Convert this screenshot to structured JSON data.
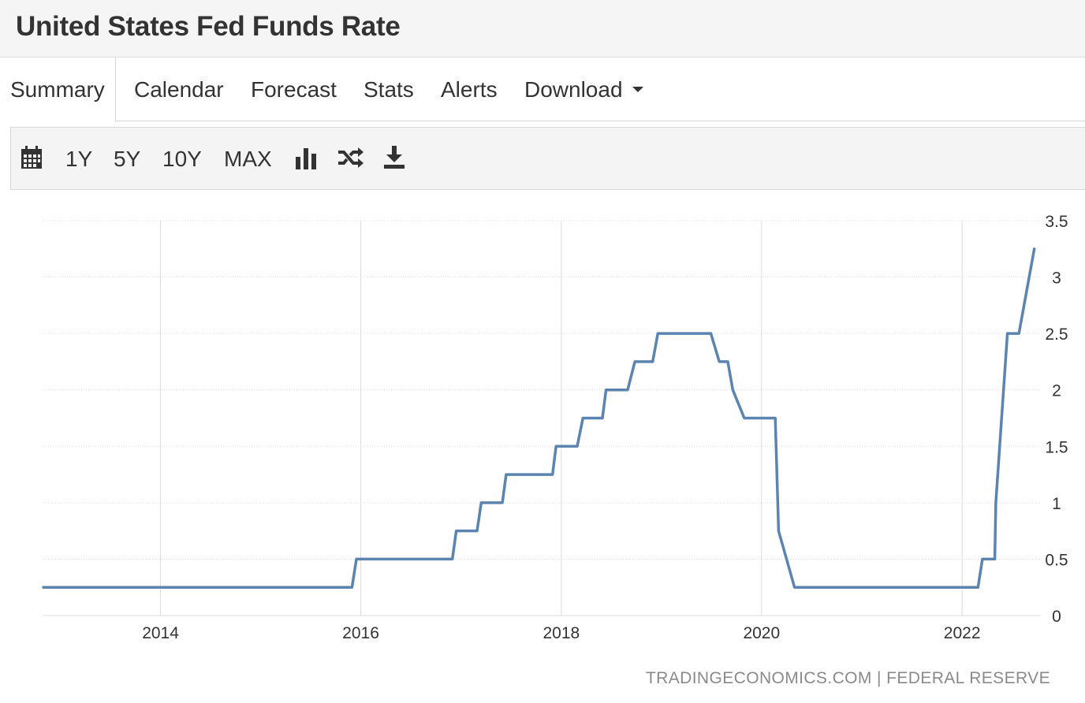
{
  "header": {
    "title": "United States Fed Funds Rate"
  },
  "tabs": [
    {
      "label": "Summary",
      "active": true
    },
    {
      "label": "Calendar"
    },
    {
      "label": "Forecast"
    },
    {
      "label": "Stats"
    },
    {
      "label": "Alerts"
    },
    {
      "label": "Download"
    }
  ],
  "toolbar": {
    "icons": [
      "calendar-icon",
      "bar-chart-icon",
      "shuffle-icon",
      "download-icon"
    ],
    "ranges": [
      "1Y",
      "5Y",
      "10Y",
      "MAX"
    ]
  },
  "colors": {
    "line": "#5b84b1",
    "grid": "#dcdcdc",
    "text": "#333333",
    "muted": "#8a8a8a"
  },
  "footer": {
    "source": "TRADINGECONOMICS.COM | FEDERAL RESERVE"
  },
  "chart_data": {
    "type": "line",
    "xlim": [
      "2012-10-31",
      "2022-10-15"
    ],
    "ylim": [
      0,
      3.5
    ],
    "x_ticks": [
      {
        "date": "2014-01-01",
        "label": "2014"
      },
      {
        "date": "2016-01-01",
        "label": "2016"
      },
      {
        "date": "2018-01-01",
        "label": "2018"
      },
      {
        "date": "2020-01-01",
        "label": "2020"
      },
      {
        "date": "2022-01-01",
        "label": "2022"
      }
    ],
    "y_ticks": [
      0,
      0.5,
      1,
      1.5,
      2,
      2.5,
      3,
      3.5
    ],
    "y_axis_position": "right",
    "grid": true,
    "series": [
      {
        "points": [
          [
            "2012-10-31",
            0.25
          ],
          [
            "2015-11-30",
            0.25
          ],
          [
            "2015-12-16",
            0.5
          ],
          [
            "2016-11-30",
            0.5
          ],
          [
            "2016-12-14",
            0.75
          ],
          [
            "2017-02-28",
            0.75
          ],
          [
            "2017-03-15",
            1.0
          ],
          [
            "2017-05-31",
            1.0
          ],
          [
            "2017-06-14",
            1.25
          ],
          [
            "2017-11-30",
            1.25
          ],
          [
            "2017-12-13",
            1.5
          ],
          [
            "2018-02-28",
            1.5
          ],
          [
            "2018-03-21",
            1.75
          ],
          [
            "2018-05-31",
            1.75
          ],
          [
            "2018-06-13",
            2.0
          ],
          [
            "2018-08-31",
            2.0
          ],
          [
            "2018-09-26",
            2.25
          ],
          [
            "2018-11-30",
            2.25
          ],
          [
            "2018-12-19",
            2.5
          ],
          [
            "2019-06-30",
            2.5
          ],
          [
            "2019-07-31",
            2.25
          ],
          [
            "2019-08-31",
            2.25
          ],
          [
            "2019-09-18",
            2.0
          ],
          [
            "2019-10-30",
            1.75
          ],
          [
            "2020-02-20",
            1.75
          ],
          [
            "2020-03-03",
            0.75
          ],
          [
            "2020-04-30",
            0.25
          ],
          [
            "2022-02-28",
            0.25
          ],
          [
            "2022-03-16",
            0.5
          ],
          [
            "2022-04-30",
            0.5
          ],
          [
            "2022-05-04",
            1.0
          ],
          [
            "2022-06-15",
            2.5
          ],
          [
            "2022-07-27",
            2.5
          ],
          [
            "2022-09-21",
            3.25
          ]
        ]
      }
    ]
  }
}
